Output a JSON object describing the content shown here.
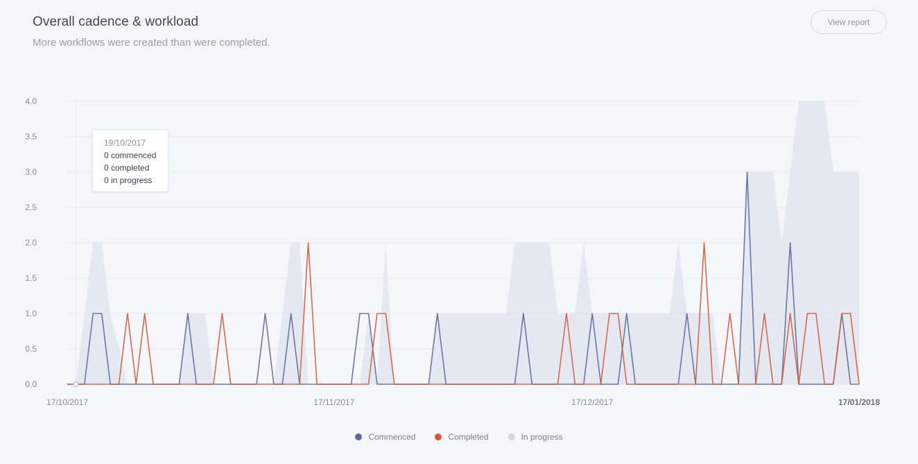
{
  "header": {
    "title": "Overall cadence & workload",
    "subtitle": "More workflows were created than were completed.",
    "view_report_label": "View report"
  },
  "tooltip": {
    "date": "19/10/2017",
    "commenced": "0 commenced",
    "completed": "0 completed",
    "in_progress": "0 in progress"
  },
  "legend": [
    {
      "name": "Commenced",
      "color": "#5d6b9b"
    },
    {
      "name": "Completed",
      "color": "#d35a3b"
    },
    {
      "name": "In progress",
      "color": "#cfd7e2"
    }
  ],
  "chart_data": {
    "type": "line",
    "title": "Overall cadence & workload",
    "subtitle": "More workflows were created than were completed.",
    "ylim": [
      0,
      4
    ],
    "y_ticks": [
      "0.0",
      "0.5",
      "1.0",
      "1.5",
      "2.0",
      "2.5",
      "3.0",
      "3.5",
      "4.0"
    ],
    "x_range": [
      "17/10/2017",
      "17/01/2018"
    ],
    "x_ticks": [
      {
        "label": "17/10/2017",
        "day": 0,
        "bold": false
      },
      {
        "label": "17/11/2017",
        "day": 31,
        "bold": false
      },
      {
        "label": "17/12/2017",
        "day": 61,
        "bold": false
      },
      {
        "label": "17/01/2018",
        "day": 92,
        "bold": true
      }
    ],
    "grid": true,
    "legend_position": "bottom-center",
    "series": [
      {
        "name": "Commenced",
        "color": "#5d6b9b",
        "kind": "line",
        "points": [
          [
            0,
            0
          ],
          [
            2,
            0
          ],
          [
            3,
            1
          ],
          [
            4,
            1
          ],
          [
            5,
            0
          ],
          [
            13,
            0
          ],
          [
            14,
            1
          ],
          [
            15,
            0
          ],
          [
            22,
            0
          ],
          [
            23,
            1
          ],
          [
            24,
            0
          ],
          [
            25,
            0
          ],
          [
            26,
            1
          ],
          [
            27,
            0
          ],
          [
            33,
            0
          ],
          [
            34,
            1
          ],
          [
            35,
            1
          ],
          [
            36,
            0
          ],
          [
            42,
            0
          ],
          [
            43,
            1
          ],
          [
            44,
            0
          ],
          [
            52,
            0
          ],
          [
            53,
            1
          ],
          [
            54,
            0
          ],
          [
            60,
            0
          ],
          [
            61,
            1
          ],
          [
            62,
            0
          ],
          [
            64,
            0
          ],
          [
            65,
            1
          ],
          [
            66,
            0
          ],
          [
            71,
            0
          ],
          [
            72,
            1
          ],
          [
            73,
            0
          ],
          [
            78,
            0
          ],
          [
            79,
            3
          ],
          [
            80,
            0
          ],
          [
            83,
            0
          ],
          [
            84,
            2
          ],
          [
            85,
            0
          ],
          [
            89,
            0
          ],
          [
            90,
            1
          ],
          [
            91,
            0
          ],
          [
            92,
            0
          ]
        ]
      },
      {
        "name": "Completed",
        "color": "#d35a3b",
        "kind": "line",
        "points": [
          [
            0,
            0
          ],
          [
            6,
            0
          ],
          [
            7,
            1
          ],
          [
            8,
            0
          ],
          [
            9,
            1
          ],
          [
            10,
            0
          ],
          [
            17,
            0
          ],
          [
            18,
            1
          ],
          [
            19,
            0
          ],
          [
            27,
            0
          ],
          [
            28,
            2
          ],
          [
            29,
            0
          ],
          [
            35,
            0
          ],
          [
            36,
            1
          ],
          [
            37,
            1
          ],
          [
            38,
            0
          ],
          [
            57,
            0
          ],
          [
            58,
            1
          ],
          [
            59,
            0
          ],
          [
            62,
            0
          ],
          [
            63,
            1
          ],
          [
            64,
            1
          ],
          [
            65,
            0
          ],
          [
            73,
            0
          ],
          [
            74,
            2
          ],
          [
            75,
            0
          ],
          [
            76,
            0
          ],
          [
            77,
            1
          ],
          [
            78,
            0
          ],
          [
            80,
            0
          ],
          [
            81,
            1
          ],
          [
            82,
            0
          ],
          [
            83,
            0
          ],
          [
            84,
            1
          ],
          [
            85,
            0
          ],
          [
            86,
            1
          ],
          [
            87,
            1
          ],
          [
            88,
            0
          ],
          [
            89,
            0
          ],
          [
            90,
            1
          ],
          [
            91,
            1
          ],
          [
            92,
            0
          ]
        ]
      },
      {
        "name": "In progress",
        "color": "#dfe3ec",
        "kind": "area",
        "points": [
          [
            0,
            0
          ],
          [
            1,
            0
          ],
          [
            2,
            1
          ],
          [
            3,
            2
          ],
          [
            4,
            2
          ],
          [
            5,
            1
          ],
          [
            7,
            0
          ],
          [
            13,
            0
          ],
          [
            14,
            1
          ],
          [
            16,
            1
          ],
          [
            17,
            0
          ],
          [
            24,
            0
          ],
          [
            25,
            1
          ],
          [
            26,
            2
          ],
          [
            27,
            2
          ],
          [
            28,
            0
          ],
          [
            34,
            0
          ],
          [
            35,
            1
          ],
          [
            36,
            0
          ],
          [
            37,
            2
          ],
          [
            38,
            0
          ],
          [
            42,
            0
          ],
          [
            43,
            1
          ],
          [
            51,
            1
          ],
          [
            52,
            2
          ],
          [
            56,
            2
          ],
          [
            57,
            1
          ],
          [
            59,
            1
          ],
          [
            60,
            2
          ],
          [
            61,
            1
          ],
          [
            63,
            1
          ],
          [
            70,
            1
          ],
          [
            71,
            2
          ],
          [
            72,
            1
          ],
          [
            75,
            1
          ],
          [
            76,
            0
          ],
          [
            78,
            0
          ],
          [
            79,
            3
          ],
          [
            82,
            3
          ],
          [
            83,
            2
          ],
          [
            84,
            3
          ],
          [
            85,
            4
          ],
          [
            88,
            4
          ],
          [
            89,
            3
          ],
          [
            92,
            3
          ]
        ]
      }
    ]
  }
}
